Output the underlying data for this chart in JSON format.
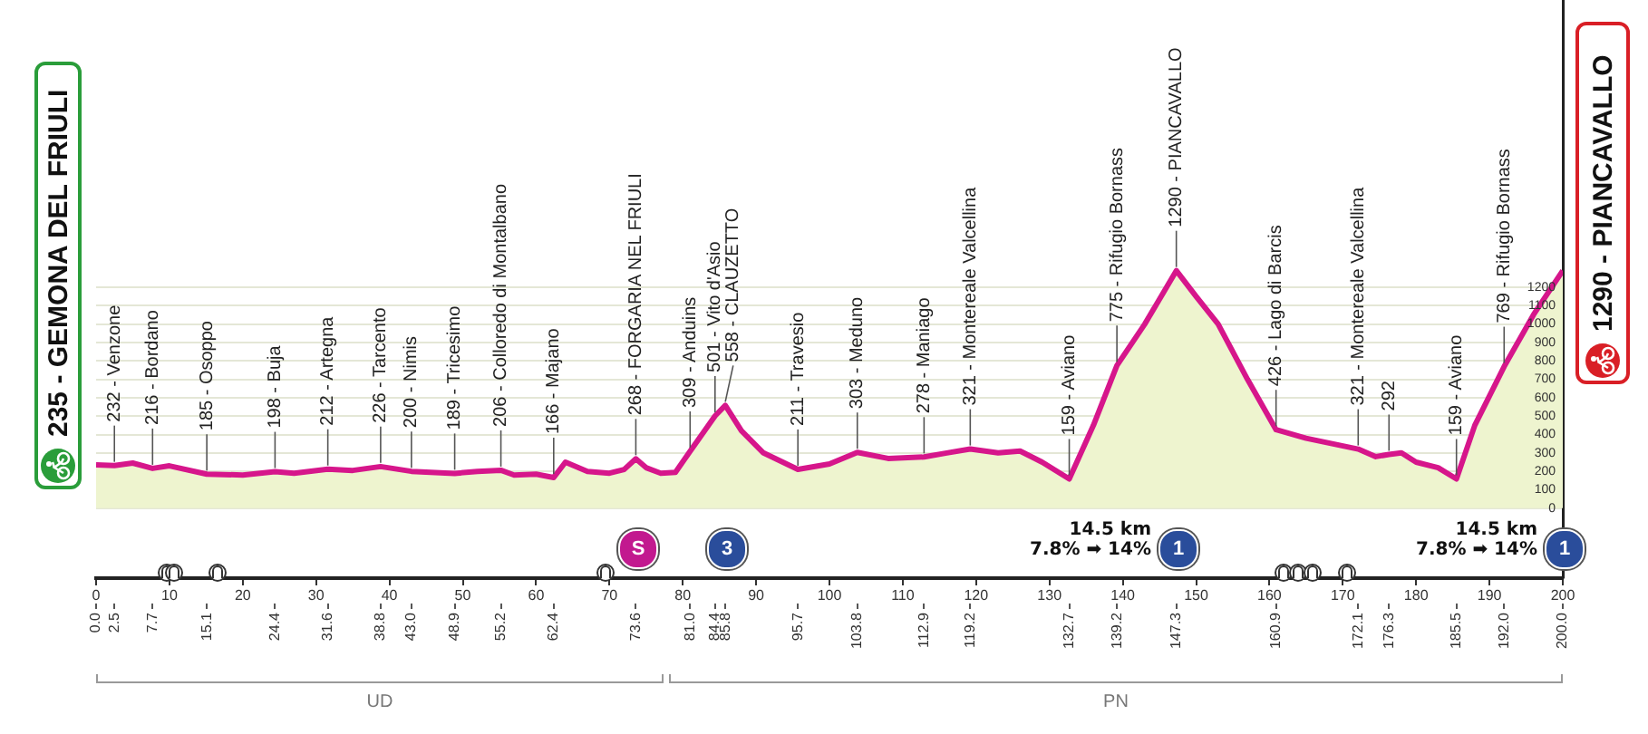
{
  "chart_data": {
    "type": "area",
    "color": "#d6168b",
    "x": [
      0,
      2.5,
      5,
      7.7,
      10,
      15.1,
      20,
      24.4,
      27,
      31.6,
      35,
      38.8,
      43,
      48.9,
      52,
      55.2,
      57,
      60,
      62.4,
      64,
      67,
      70,
      72,
      73.6,
      75,
      77,
      79,
      81,
      84.4,
      85.8,
      88,
      91,
      95.7,
      100,
      103.8,
      108,
      112.9,
      116,
      119.2,
      123,
      126,
      129,
      132.7,
      136,
      139.2,
      143,
      147.3,
      150,
      153,
      157,
      160.9,
      165,
      172.1,
      174.5,
      176.3,
      178,
      180,
      183,
      185.5,
      188,
      192,
      196,
      200
    ],
    "values": [
      235,
      232,
      245,
      216,
      230,
      185,
      180,
      198,
      190,
      212,
      205,
      226,
      200,
      189,
      200,
      206,
      180,
      185,
      166,
      250,
      200,
      190,
      210,
      268,
      220,
      190,
      195,
      309,
      501,
      558,
      420,
      300,
      211,
      240,
      303,
      270,
      278,
      300,
      321,
      300,
      310,
      250,
      159,
      450,
      775,
      1000,
      1290,
      1150,
      1000,
      700,
      426,
      380,
      321,
      280,
      292,
      300,
      250,
      220,
      159,
      450,
      769,
      1050,
      1290
    ],
    "xlim": [
      0,
      200
    ],
    "xticks": [
      0,
      10,
      20,
      30,
      40,
      50,
      60,
      70,
      80,
      90,
      100,
      110,
      120,
      130,
      140,
      150,
      160,
      170,
      180,
      190,
      200
    ],
    "x2lim": [
      0,
      200
    ],
    "x2ticks": [
      {
        "value": 0,
        "label": "0.0"
      },
      {
        "value": 2.5,
        "label": "2.5"
      },
      {
        "value": 7.7,
        "label": "7.7"
      },
      {
        "value": 15.1,
        "label": "15.1"
      },
      {
        "value": 24.4,
        "label": "24.4"
      },
      {
        "value": 31.6,
        "label": "31.6"
      },
      {
        "value": 38.8,
        "label": "38.8"
      },
      {
        "value": 43,
        "label": "43.0"
      },
      {
        "value": 48.9,
        "label": "48.9"
      },
      {
        "value": 55.2,
        "label": "55.2"
      },
      {
        "value": 62.4,
        "label": "62.4"
      },
      {
        "value": 73.6,
        "label": "73.6"
      },
      {
        "value": 81,
        "label": "81.0"
      },
      {
        "value": 84.4,
        "label": "84.4"
      },
      {
        "value": 85.8,
        "label": "85.8"
      },
      {
        "value": 95.7,
        "label": "95.7"
      },
      {
        "value": 103.8,
        "label": "103.8"
      },
      {
        "value": 112.9,
        "label": "112.9"
      },
      {
        "value": 119.2,
        "label": "119.2"
      },
      {
        "value": 132.7,
        "label": "132.7"
      },
      {
        "value": 139.2,
        "label": "139.2"
      },
      {
        "value": 147.3,
        "label": "147.3"
      },
      {
        "value": 160.9,
        "label": "160.9"
      },
      {
        "value": 172.1,
        "label": "172.1"
      },
      {
        "value": 176.3,
        "label": "176.3"
      },
      {
        "value": 185.5,
        "label": "185.5"
      },
      {
        "value": 192,
        "label": "192.0"
      },
      {
        "value": 200,
        "label": "200.0"
      }
    ],
    "ylim": [
      -380,
      2760
    ],
    "yticks": [
      0,
      100,
      200,
      300,
      400,
      500,
      600,
      700,
      800,
      900,
      1000,
      1100,
      1200
    ],
    "grid": "y",
    "annotations": [
      "235 - GEMONA DEL FRIULI",
      "1290 - PIANCAVALLO",
      "UD",
      "PN",
      "S",
      "3",
      "1",
      "1",
      "14.5 km",
      "7.8% ➡ 14%",
      "14.5 km",
      "7.8% ➡ 14%",
      {
        "text": "232 - Venzone",
        "x": 2.5,
        "y": 232
      },
      {
        "text": "216 - Bordano",
        "x": 7.7,
        "y": 216
      },
      {
        "text": "185 - Osoppo",
        "x": 15.1,
        "y": 185
      },
      {
        "text": "198 - Buja",
        "x": 24.4,
        "y": 198
      },
      {
        "text": "212 - Artegna",
        "x": 31.6,
        "y": 212
      },
      {
        "text": "226 - Tarcento",
        "x": 38.8,
        "y": 226
      },
      {
        "text": "200 - Nimis",
        "x": 43.0,
        "y": 200
      },
      {
        "text": "189 - Tricesimo",
        "x": 48.9,
        "y": 189
      },
      {
        "text": "206 - Colloredo di Montalbano",
        "x": 55.2,
        "y": 206
      },
      {
        "text": "166 - Majano",
        "x": 62.4,
        "y": 166
      },
      {
        "text": "268 - FORGARIA NEL FRIULI",
        "x": 73.6,
        "y": 268
      },
      {
        "text": "309 - Anduins",
        "x": 81.0,
        "y": 309
      },
      {
        "text": "501 - Vito d'Asio",
        "x": 84.4,
        "y": 501
      },
      {
        "text": "558 - CLAUZETTO",
        "x": 85.8,
        "y": 558
      },
      {
        "text": "211 - Travesio",
        "x": 95.7,
        "y": 211
      },
      {
        "text": "303 - Meduno",
        "x": 103.8,
        "y": 303
      },
      {
        "text": "278 - Maniago",
        "x": 112.9,
        "y": 278
      },
      {
        "text": "321 - Montereale Valcellina",
        "x": 119.2,
        "y": 321
      },
      {
        "text": "159 - Aviano",
        "x": 132.7,
        "y": 159
      },
      {
        "text": "775 - Rifugio Bornass",
        "x": 139.2,
        "y": 775
      },
      {
        "text": "1290 - PIANCAVALLO",
        "x": 147.3,
        "y": 1290
      },
      {
        "text": "426 - Lago di Barcis",
        "x": 160.9,
        "y": 426
      },
      {
        "text": "321 - Montereale Valcellina",
        "x": 172.1,
        "y": 321
      },
      {
        "text": "292",
        "x": 176.3,
        "y": 292
      },
      {
        "text": "159 - Aviano",
        "x": 185.5,
        "y": 159
      },
      {
        "text": "769 - Rifugio Bornass",
        "x": 192.0,
        "y": 769
      }
    ]
  }
}
